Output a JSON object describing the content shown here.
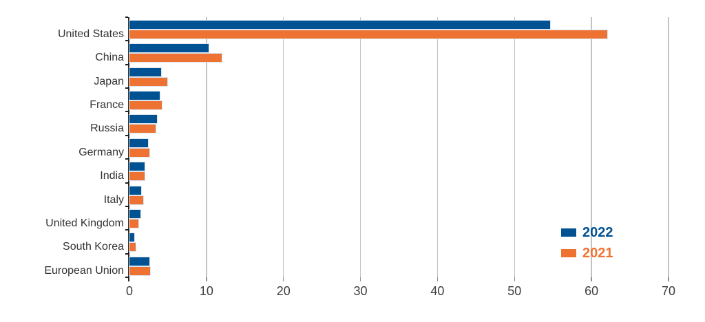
{
  "chart_data": {
    "type": "bar",
    "orientation": "horizontal",
    "title": "",
    "xlabel": "",
    "ylabel": "",
    "categories": [
      "United States",
      "China",
      "Japan",
      "France",
      "Russia",
      "Germany",
      "India",
      "Italy",
      "United Kingdom",
      "South Korea",
      "European Union"
    ],
    "series": [
      {
        "name": "2022",
        "color": "#005292",
        "values": [
          54.6,
          10.3,
          4.1,
          3.9,
          3.6,
          2.4,
          2.0,
          1.5,
          1.4,
          0.6,
          2.6
        ]
      },
      {
        "name": "2021",
        "color": "#ee7333",
        "values": [
          62.0,
          12.0,
          4.9,
          4.2,
          3.4,
          2.6,
          2.0,
          1.8,
          1.2,
          0.8,
          2.7
        ]
      }
    ],
    "xlim": [
      0,
      70
    ],
    "xticks": [
      0,
      10,
      20,
      30,
      40,
      50,
      60,
      70
    ],
    "grid": true,
    "legend_position": "inside-right"
  },
  "legend": {
    "items": [
      {
        "label": "2022",
        "color": "#005292"
      },
      {
        "label": "2021",
        "color": "#ee7333"
      }
    ]
  },
  "colors": {
    "background": "#ffffff",
    "grid": "#c2c2c2",
    "axis": "#222222",
    "tick": "#8f8f8f",
    "tick_label": "#3d3d3d",
    "category_label": "#333333"
  }
}
